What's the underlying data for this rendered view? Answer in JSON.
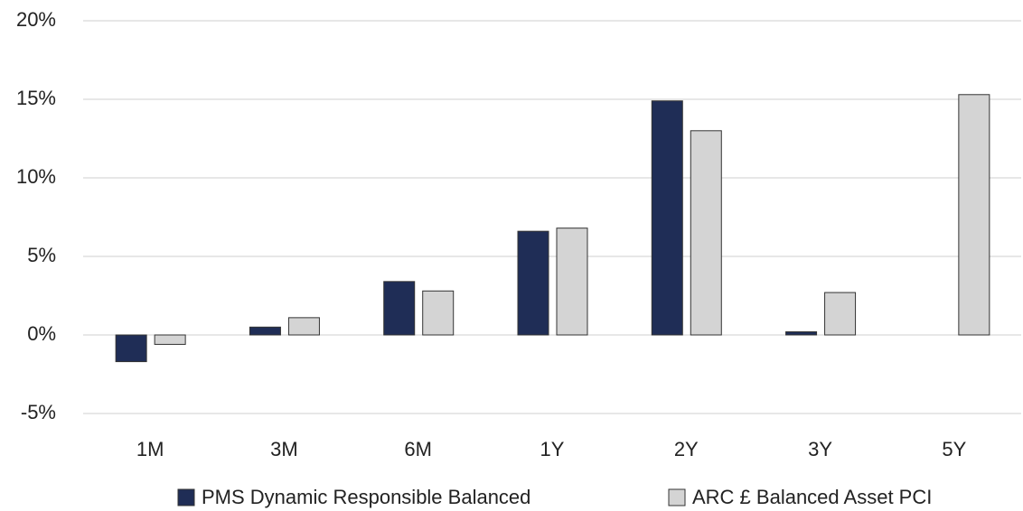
{
  "chart_data": {
    "type": "bar",
    "categories": [
      "1M",
      "3M",
      "6M",
      "1Y",
      "2Y",
      "3Y",
      "5Y"
    ],
    "series": [
      {
        "name": "PMS Dynamic Responsible Balanced",
        "color": "#1f2d56",
        "values": [
          -1.7,
          0.5,
          3.4,
          6.6,
          14.9,
          0.2,
          null
        ]
      },
      {
        "name": "ARC £ Balanced Asset PCI",
        "color": "#d4d4d4",
        "values": [
          -0.6,
          1.1,
          2.8,
          6.8,
          13.0,
          2.7,
          15.3
        ]
      }
    ],
    "ylim": [
      -5,
      20
    ],
    "yticks": [
      {
        "value": -5,
        "label": "-5%"
      },
      {
        "value": 0,
        "label": "0%"
      },
      {
        "value": 5,
        "label": "5%"
      },
      {
        "value": 10,
        "label": "10%"
      },
      {
        "value": 15,
        "label": "15%"
      },
      {
        "value": 20,
        "label": "20%"
      }
    ],
    "grid": true,
    "legend": "bottom"
  }
}
